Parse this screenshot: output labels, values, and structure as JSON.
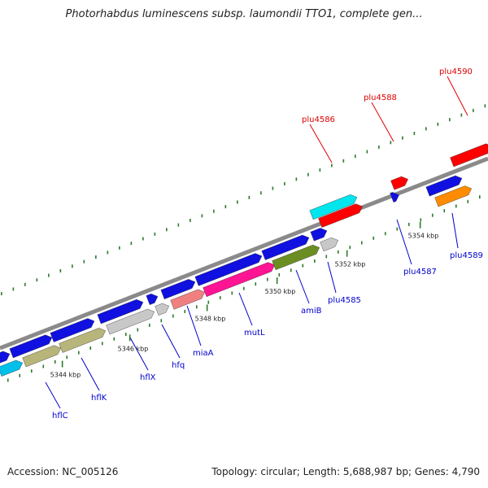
{
  "title": "Photorhabdus luminescens subsp. laumondii TTO1, complete gen...",
  "footer": {
    "accession": "Accession: NC_005126",
    "summary": "Topology: circular; Length: 5,688,987 bp; Genes: 4,790"
  },
  "colors": {
    "blue_gene": "#1010e0",
    "backbone": "#8a8a8a",
    "tick": "#2a7a2a",
    "label_blue": "#0000cc",
    "label_red": "#dd0000"
  },
  "position_ticks": [
    "5344 kbp",
    "5346 kbp",
    "5348 kbp",
    "5350 kbp",
    "5352 kbp",
    "5354 kbp"
  ],
  "gene_labels": [
    {
      "text": "hflC",
      "color": "blue"
    },
    {
      "text": "hflK",
      "color": "blue"
    },
    {
      "text": "hflX",
      "color": "blue"
    },
    {
      "text": "hfq",
      "color": "blue"
    },
    {
      "text": "miaA",
      "color": "blue"
    },
    {
      "text": "mutL",
      "color": "blue"
    },
    {
      "text": "amiB",
      "color": "blue"
    },
    {
      "text": "plu4585",
      "color": "blue"
    },
    {
      "text": "plu4586",
      "color": "red"
    },
    {
      "text": "plu4587",
      "color": "blue"
    },
    {
      "text": "plu4588",
      "color": "red"
    },
    {
      "text": "plu4589",
      "color": "blue"
    },
    {
      "text": "plu4590",
      "color": "red"
    }
  ]
}
